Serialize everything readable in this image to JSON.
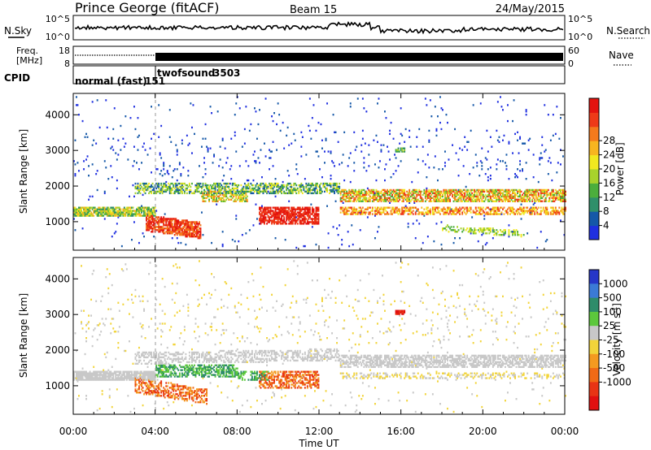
{
  "header": {
    "station": "Prince George (fitACF)",
    "beam": "Beam 15",
    "date": "24/May/2015"
  },
  "noise_panel": {
    "left_label": "N.Sky",
    "right_label": "N.Search",
    "left_ticks": [
      "10^5",
      "10^0"
    ],
    "right_ticks": [
      "10^5",
      "10^0"
    ],
    "sky_legend_style": "solid",
    "search_legend_style": "dotted"
  },
  "freq_panel": {
    "left_label_line1": "Freq.",
    "left_label_line2": "[MHz]",
    "left_ticks": [
      "18",
      "8"
    ],
    "right_label": "Nave",
    "right_ticks": [
      "60",
      "0"
    ],
    "nave_legend_style": "dotted"
  },
  "cpid_panel": {
    "label": "CPID",
    "modes": [
      {
        "name": "normal (fast)",
        "id": "151",
        "start_hour": 0.0
      },
      {
        "name": "twofsound",
        "id": "3503",
        "start_hour": 4.0
      }
    ]
  },
  "colorbars": {
    "power": {
      "label": "Power [dB]",
      "ticks": [
        "4",
        "8",
        "12",
        "16",
        "20",
        "24",
        "28"
      ],
      "colors": [
        "#1f2fe0",
        "#1558a8",
        "#2f8f6a",
        "#4cae3c",
        "#a8d22c",
        "#f1e820",
        "#f7b520",
        "#f47a1c",
        "#ee3a18",
        "#e3130f"
      ]
    },
    "velocity": {
      "label": "Velocity [m s",
      "label_superscript": "-1",
      "label_close": "]",
      "ticks": [
        "1000",
        "500",
        "100",
        "25",
        "-25",
        "-100",
        "-500",
        "-1000"
      ],
      "colors": [
        "#2636c8",
        "#3b7ad6",
        "#2e8c6a",
        "#5cc83c",
        "#c8c8c8",
        "#f2d43a",
        "#f49a20",
        "#f06a16",
        "#e83414",
        "#e11010"
      ]
    }
  },
  "chart_data": [
    {
      "type": "heatmap",
      "name": "power",
      "ylabel": "Slant Range [km]",
      "y_ticks": [
        1000,
        2000,
        3000,
        4000
      ],
      "ylim": [
        200,
        4600
      ],
      "xlim": [
        0,
        24
      ],
      "x_ticks": [
        "00:00",
        "04:00",
        "08:00",
        "12:00",
        "16:00",
        "20:00",
        "00:00"
      ],
      "x_tick_hours": [
        0,
        4,
        8,
        12,
        16,
        20,
        24
      ],
      "dashed_marker_hour": 4.0
    },
    {
      "type": "heatmap",
      "name": "velocity",
      "ylabel": "Slant Range [km]",
      "xlabel": "Time UT",
      "y_ticks": [
        1000,
        2000,
        3000,
        4000
      ],
      "ylim": [
        200,
        4600
      ],
      "xlim": [
        0,
        24
      ],
      "x_ticks": [
        "00:00",
        "04:00",
        "08:00",
        "12:00",
        "16:00",
        "20:00",
        "00:00"
      ],
      "x_tick_hours": [
        0,
        4,
        8,
        12,
        16,
        20,
        24
      ],
      "dashed_marker_hour": 4.0
    }
  ]
}
